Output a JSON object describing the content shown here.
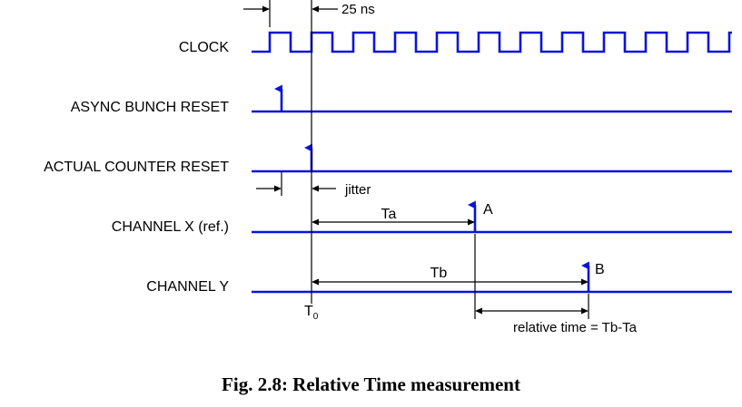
{
  "colors": {
    "signal": "#0a14d6",
    "text": "#000000"
  },
  "labels": {
    "period": "25 ns",
    "jitter": "jitter",
    "clock": "CLOCK",
    "async_reset": "ASYNC BUNCH RESET",
    "actual_reset": "ACTUAL COUNTER RESET",
    "channel_x": "CHANNEL X (ref.)",
    "channel_y": "CHANNEL Y",
    "ta": "Ta",
    "tb": "Tb",
    "hit_a": "A",
    "hit_b": "B",
    "t0_base": "T",
    "t0_sub": "0",
    "relative": "relative time = Tb-Ta"
  },
  "caption": "Fig. 2.8: Relative Time measurement"
}
